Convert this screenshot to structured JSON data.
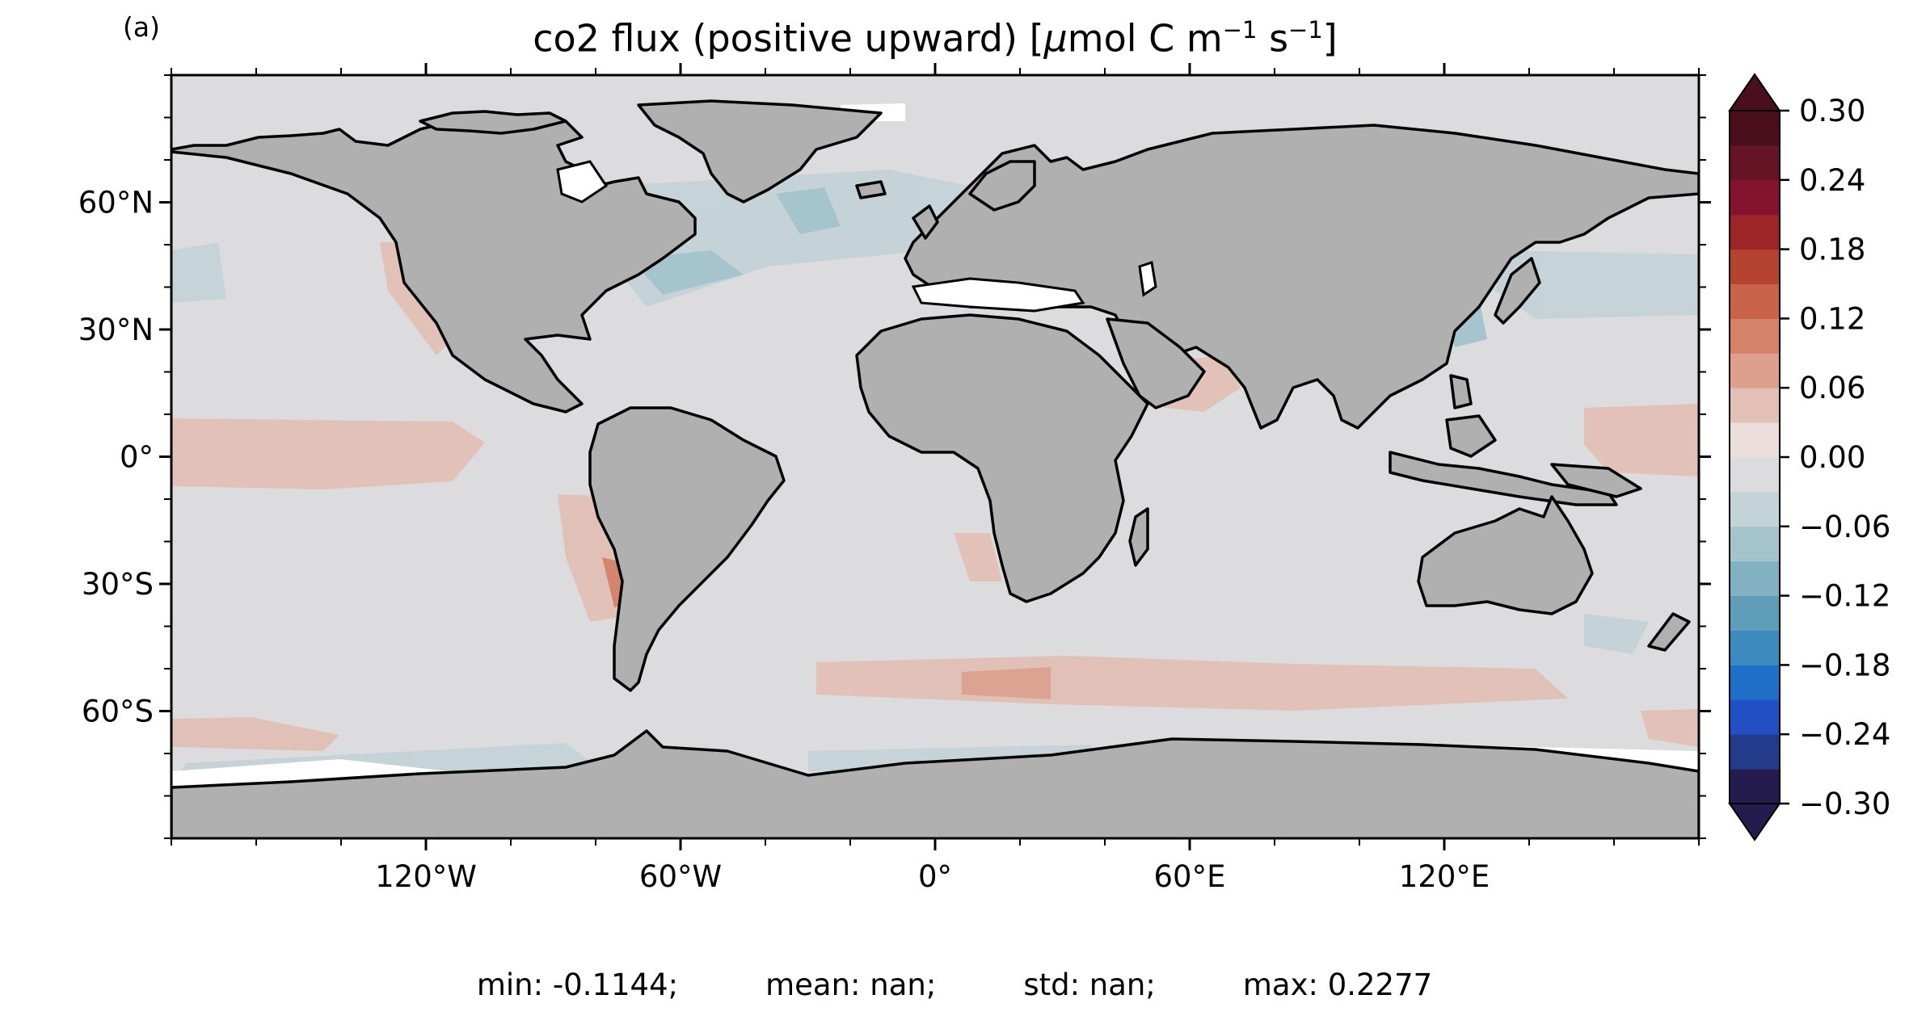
{
  "panel_label": "(a)",
  "title": "co2 flux (positive upward) [",
  "title_mu": "μ",
  "title_unit": "mol C m",
  "title_exp1": "−1",
  "title_unit2": " s",
  "title_exp2": "−1",
  "title_close": "]",
  "map": {
    "projection": "PlateCarree",
    "lon_range": [
      -180,
      180
    ],
    "lat_range": [
      -90,
      90
    ],
    "land_color": "#b0b0b0",
    "ocean_background": "#dcdcde",
    "coastline_color": "#000000",
    "xticks": [
      {
        "value": -120,
        "label": "120°W"
      },
      {
        "value": -60,
        "label": "60°W"
      },
      {
        "value": 0,
        "label": "0°"
      },
      {
        "value": 60,
        "label": "60°E"
      },
      {
        "value": 120,
        "label": "120°E"
      }
    ],
    "yticks": [
      {
        "value": 60,
        "label": "60°N"
      },
      {
        "value": 30,
        "label": "30°N"
      },
      {
        "value": 0,
        "label": "0°"
      },
      {
        "value": -30,
        "label": "30°S"
      },
      {
        "value": -60,
        "label": "60°S"
      }
    ]
  },
  "colorbar": {
    "ticks": [
      "0.30",
      "0.24",
      "0.18",
      "0.12",
      "0.06",
      "0.00",
      "−0.06",
      "−0.12",
      "−0.18",
      "−0.24",
      "−0.30"
    ],
    "extend": "both",
    "colors": [
      "#251c4e",
      "#243a8a",
      "#2250c4",
      "#1f6fc8",
      "#3b8bbf",
      "#5f9db9",
      "#82b1c2",
      "#a4c3cd",
      "#c4d3d8",
      "#dcdcde",
      "#ebdedc",
      "#e2c0b5",
      "#dda08e",
      "#d48268",
      "#c9634a",
      "#b4432f",
      "#9d2528",
      "#83132e",
      "#661326",
      "#4a0f1c"
    ]
  },
  "stats": {
    "min": "min: -0.1144;",
    "mean": "mean: nan;",
    "std": "std: nan;",
    "max": "max: 0.2277"
  }
}
